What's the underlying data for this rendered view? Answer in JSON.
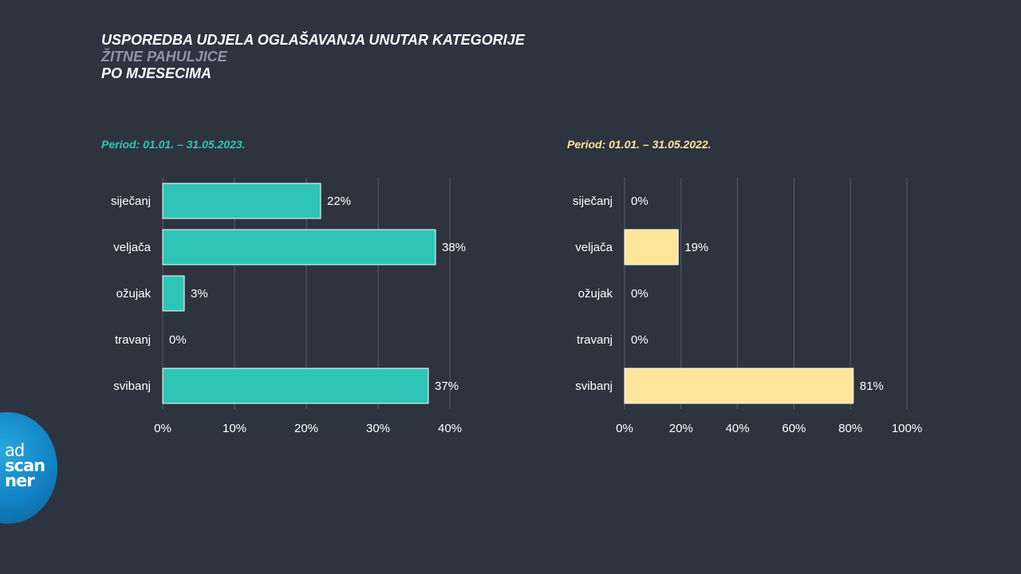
{
  "title": {
    "line1": "USPOREDBA UDJELA OGLAŠAVANJA UNUTAR KATEGORIJE",
    "line2": "ŽITNE PAHULJICE",
    "line3": "PO MJESECIMA"
  },
  "logo": {
    "line1": "ad",
    "line2": "scan",
    "line3": "ner"
  },
  "colors": {
    "background": "#2e3340",
    "series_2023": "#2ec5b6",
    "series_2022": "#ffe69a",
    "grid": "#5a5f6b"
  },
  "chart_data": [
    {
      "type": "bar",
      "orientation": "horizontal",
      "title": "Period: 01.01. – 31.05.2023.",
      "categories": [
        "siječanj",
        "veljača",
        "ožujak",
        "travanj",
        "svibanj"
      ],
      "values": [
        22,
        38,
        3,
        0,
        37
      ],
      "value_labels": [
        "22%",
        "38%",
        "3%",
        "0%",
        "37%"
      ],
      "xlim": [
        0,
        40
      ],
      "xticks": [
        0,
        10,
        20,
        30,
        40
      ],
      "xtick_labels": [
        "0%",
        "10%",
        "20%",
        "30%",
        "40%"
      ],
      "color": "#2ec5b6",
      "grid": true
    },
    {
      "type": "bar",
      "orientation": "horizontal",
      "title": "Period: 01.01. – 31.05.2022.",
      "categories": [
        "siječanj",
        "veljača",
        "ožujak",
        "travanj",
        "svibanj"
      ],
      "values": [
        0,
        19,
        0,
        0,
        81
      ],
      "value_labels": [
        "0%",
        "19%",
        "0%",
        "0%",
        "81%"
      ],
      "xlim": [
        0,
        100
      ],
      "xticks": [
        0,
        20,
        40,
        60,
        80,
        100
      ],
      "xtick_labels": [
        "0%",
        "20%",
        "40%",
        "60%",
        "80%",
        "100%"
      ],
      "color": "#ffe69a",
      "grid": true
    }
  ]
}
